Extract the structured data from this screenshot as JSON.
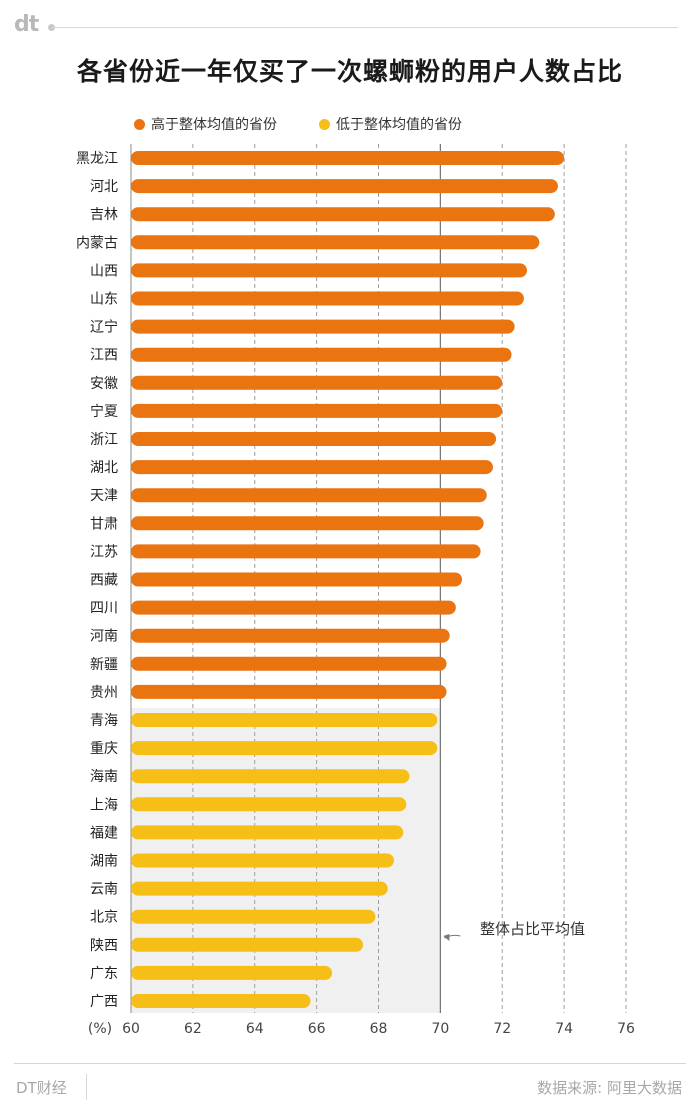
{
  "header": {
    "logo": "dt",
    "title": "各省份近一年仅买了一次螺蛳粉的用户人数占比"
  },
  "legend": {
    "above": "高于整体均值的省份",
    "below": "低于整体均值的省份"
  },
  "colors": {
    "above": "#ea7410",
    "below": "#f6bf17",
    "band": "#f0f0f0",
    "grid": "#9e9e9e"
  },
  "annotation": {
    "label": "整体占比平均值"
  },
  "footer": {
    "brand": "DT财经",
    "source": "数据来源: 阿里大数据"
  },
  "chart_data": {
    "type": "bar",
    "orientation": "horizontal",
    "title": "各省份近一年仅买了一次螺蛳粉的用户人数占比",
    "xlabel": "(%)",
    "xlim": [
      60,
      76
    ],
    "xticks": [
      60,
      62,
      64,
      66,
      68,
      70,
      72,
      74,
      76
    ],
    "average": 70,
    "grid": "vertical dashed",
    "legend_position": "top",
    "categories": [
      "黑龙江",
      "河北",
      "吉林",
      "内蒙古",
      "山西",
      "山东",
      "辽宁",
      "江西",
      "安徽",
      "宁夏",
      "浙江",
      "湖北",
      "天津",
      "甘肃",
      "江苏",
      "西藏",
      "四川",
      "河南",
      "新疆",
      "贵州",
      "青海",
      "重庆",
      "海南",
      "上海",
      "福建",
      "湖南",
      "云南",
      "北京",
      "陕西",
      "广东",
      "广西"
    ],
    "values": [
      74.0,
      73.8,
      73.7,
      73.2,
      72.8,
      72.7,
      72.4,
      72.3,
      72.0,
      72.0,
      71.8,
      71.7,
      71.5,
      71.4,
      71.3,
      70.7,
      70.5,
      70.3,
      70.2,
      70.2,
      69.9,
      69.9,
      69.0,
      68.9,
      68.8,
      68.5,
      68.3,
      67.9,
      67.5,
      66.5,
      65.8
    ],
    "groups": [
      "above",
      "above",
      "above",
      "above",
      "above",
      "above",
      "above",
      "above",
      "above",
      "above",
      "above",
      "above",
      "above",
      "above",
      "above",
      "above",
      "above",
      "above",
      "above",
      "above",
      "below",
      "below",
      "below",
      "below",
      "below",
      "below",
      "below",
      "below",
      "below",
      "below",
      "below"
    ]
  }
}
